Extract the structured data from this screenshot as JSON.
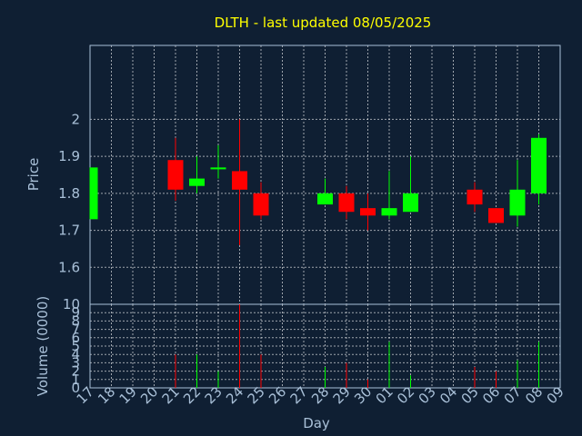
{
  "chart_data": {
    "type": "candlestick",
    "title": "DLTH - last updated 08/05/2025",
    "xlabel": "Day",
    "price_ylabel": "Price",
    "volume_ylabel": "Volume (0000)",
    "x_ticks": [
      "17",
      "18",
      "19",
      "20",
      "21",
      "22",
      "23",
      "24",
      "25",
      "26",
      "27",
      "28",
      "29",
      "30",
      "01",
      "02",
      "03",
      "04",
      "05",
      "06",
      "07",
      "08",
      "09"
    ],
    "price_yticks": [
      "1.6",
      "1.7",
      "1.8",
      "1.9",
      "2"
    ],
    "price_ylim": [
      1.5,
      2.2
    ],
    "volume_yticks": [
      "0",
      "1",
      "2",
      "3",
      "4",
      "5",
      "6",
      "7",
      "8",
      "9",
      "10"
    ],
    "volume_ylim": [
      0,
      10
    ],
    "grid": true,
    "up_color": "#00ff00",
    "down_color": "#ff0000",
    "candles": [
      {
        "day": "17",
        "open": 1.73,
        "high": 1.87,
        "low": 1.73,
        "close": 1.87,
        "volume": 0
      },
      {
        "day": "21",
        "open": 1.89,
        "high": 1.95,
        "low": 1.78,
        "close": 1.81,
        "volume": 4
      },
      {
        "day": "22",
        "open": 1.82,
        "high": 1.9,
        "low": 1.8,
        "close": 1.84,
        "volume": 4
      },
      {
        "day": "23",
        "open": 1.865,
        "high": 1.93,
        "low": 1.84,
        "close": 1.87,
        "volume": 2
      },
      {
        "day": "24",
        "open": 1.86,
        "high": 2.0,
        "low": 1.66,
        "close": 1.81,
        "volume": 10
      },
      {
        "day": "25",
        "open": 1.8,
        "high": 1.83,
        "low": 1.73,
        "close": 1.74,
        "volume": 4
      },
      {
        "day": "28",
        "open": 1.77,
        "high": 1.84,
        "low": 1.77,
        "close": 1.8,
        "volume": 2.5
      },
      {
        "day": "29",
        "open": 1.8,
        "high": 1.82,
        "low": 1.73,
        "close": 1.75,
        "volume": 3
      },
      {
        "day": "30",
        "open": 1.76,
        "high": 1.8,
        "low": 1.7,
        "close": 1.74,
        "volume": 1
      },
      {
        "day": "01",
        "open": 1.74,
        "high": 1.86,
        "low": 1.73,
        "close": 1.76,
        "volume": 5.5
      },
      {
        "day": "02",
        "open": 1.75,
        "high": 1.9,
        "low": 1.75,
        "close": 1.8,
        "volume": 1.5
      },
      {
        "day": "05",
        "open": 1.81,
        "high": 1.83,
        "low": 1.75,
        "close": 1.77,
        "volume": 2.5
      },
      {
        "day": "06",
        "open": 1.76,
        "high": 1.76,
        "low": 1.72,
        "close": 1.72,
        "volume": 2
      },
      {
        "day": "07",
        "open": 1.74,
        "high": 1.89,
        "low": 1.71,
        "close": 1.81,
        "volume": 3.3
      },
      {
        "day": "08",
        "open": 1.8,
        "high": 1.96,
        "low": 1.77,
        "close": 1.95,
        "volume": 5.5
      }
    ]
  }
}
